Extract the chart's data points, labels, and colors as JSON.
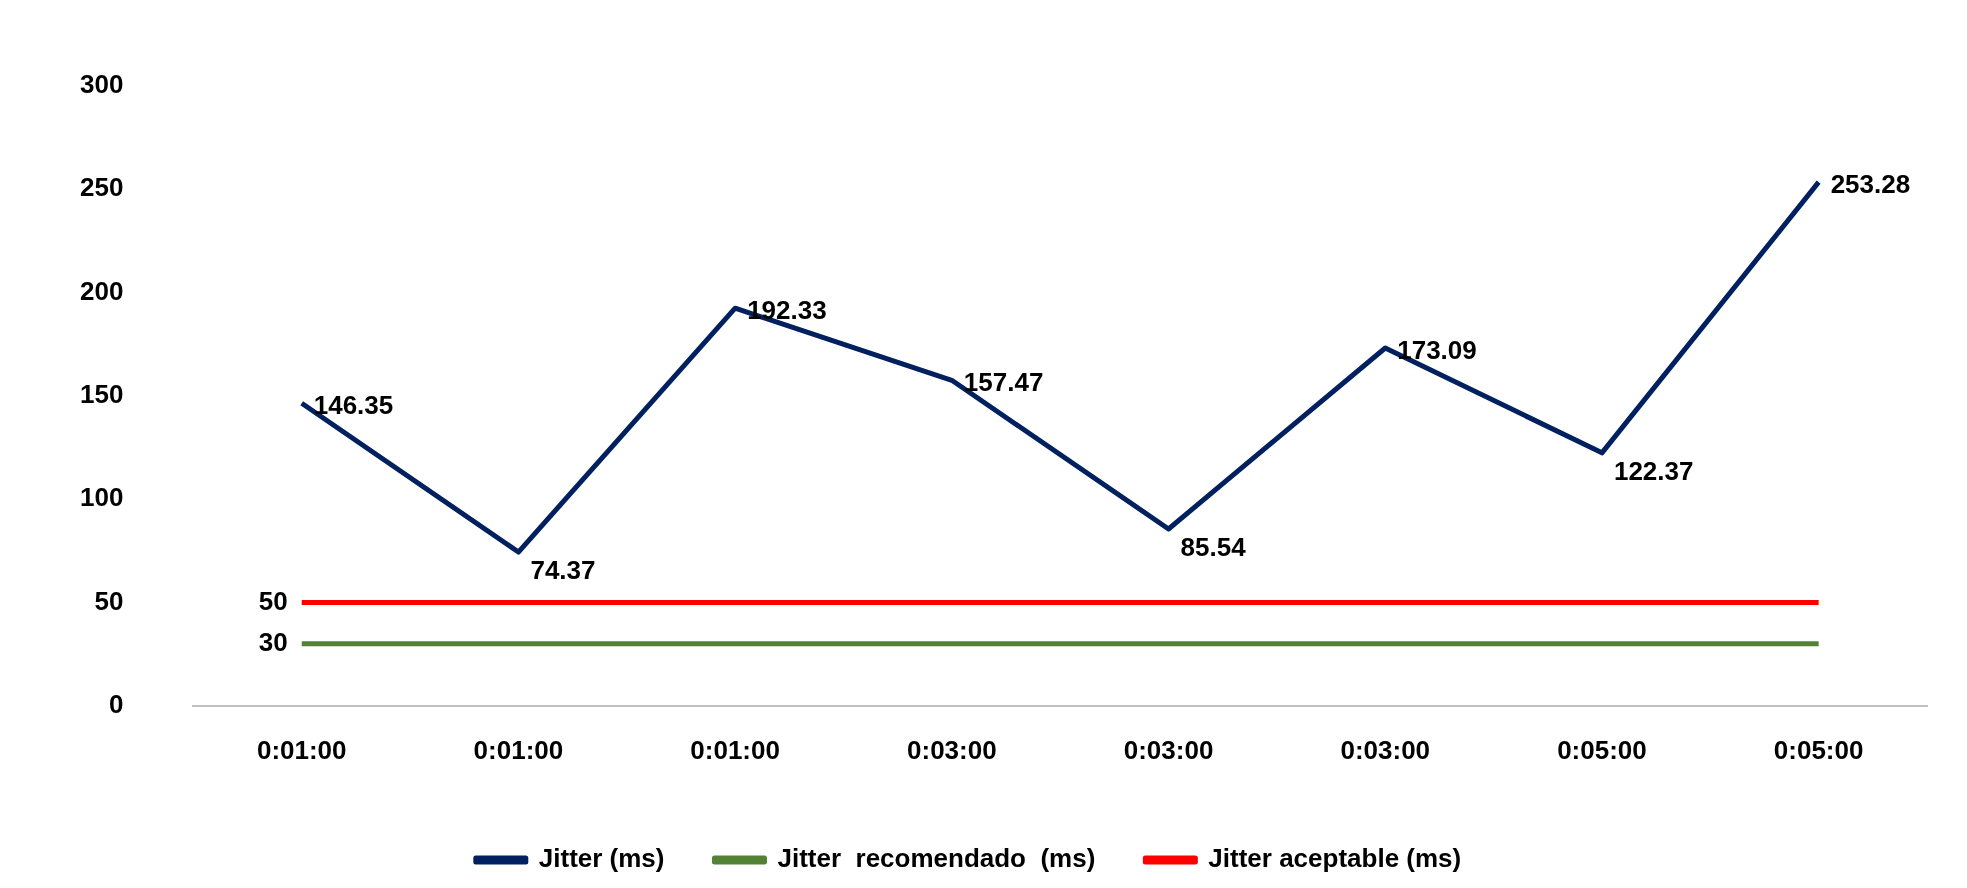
{
  "chart_data": {
    "type": "line",
    "categories": [
      "0:01:00",
      "0:01:00",
      "0:01:00",
      "0:03:00",
      "0:03:00",
      "0:03:00",
      "0:05:00",
      "0:05:00"
    ],
    "series": [
      {
        "name": "Jitter (ms)",
        "color": "#002060",
        "values": [
          146.35,
          74.37,
          192.33,
          157.47,
          85.54,
          173.09,
          122.37,
          253.28
        ],
        "value_labels": [
          "146.35",
          "74.37",
          "192.33",
          "157.47",
          "85.54",
          "173.09",
          "122.37",
          "253.28"
        ]
      },
      {
        "name": "Jitter  recomendado  (ms)",
        "color": "#548235",
        "values": [
          30,
          30,
          30,
          30,
          30,
          30,
          30,
          30
        ],
        "value_labels": [
          "30",
          null,
          null,
          null,
          null,
          null,
          null,
          null
        ]
      },
      {
        "name": "Jitter aceptable (ms)",
        "color": "#ff0000",
        "values": [
          50,
          50,
          50,
          50,
          50,
          50,
          50,
          50
        ],
        "value_labels": [
          "50",
          null,
          null,
          null,
          null,
          null,
          null,
          null
        ]
      }
    ],
    "ylim": [
      0,
      300
    ],
    "yticks": [
      0,
      50,
      100,
      150,
      200,
      250,
      300
    ],
    "grid": false,
    "legend": "bottom",
    "marker": "none",
    "line_style": "solid"
  }
}
